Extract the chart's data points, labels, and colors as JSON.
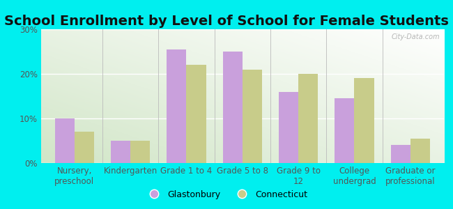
{
  "title": "School Enrollment by Level of School for Female Students",
  "categories": [
    "Nursery,\npreschool",
    "Kindergarten",
    "Grade 1 to 4",
    "Grade 5 to 8",
    "Grade 9 to\n12",
    "College\nundergrad",
    "Graduate or\nprofessional"
  ],
  "glastonbury": [
    10,
    5,
    25.5,
    25,
    16,
    14.5,
    4
  ],
  "connecticut": [
    7,
    5,
    22,
    21,
    20,
    19,
    5.5
  ],
  "glastonbury_color": "#c9a0dc",
  "connecticut_color": "#c8cc8a",
  "background_color": "#00EFEF",
  "ylim": [
    0,
    30
  ],
  "yticks": [
    0,
    10,
    20,
    30
  ],
  "ytick_labels": [
    "0%",
    "10%",
    "20%",
    "30%"
  ],
  "title_fontsize": 14,
  "tick_fontsize": 8.5,
  "legend_fontsize": 9,
  "bar_width": 0.35
}
